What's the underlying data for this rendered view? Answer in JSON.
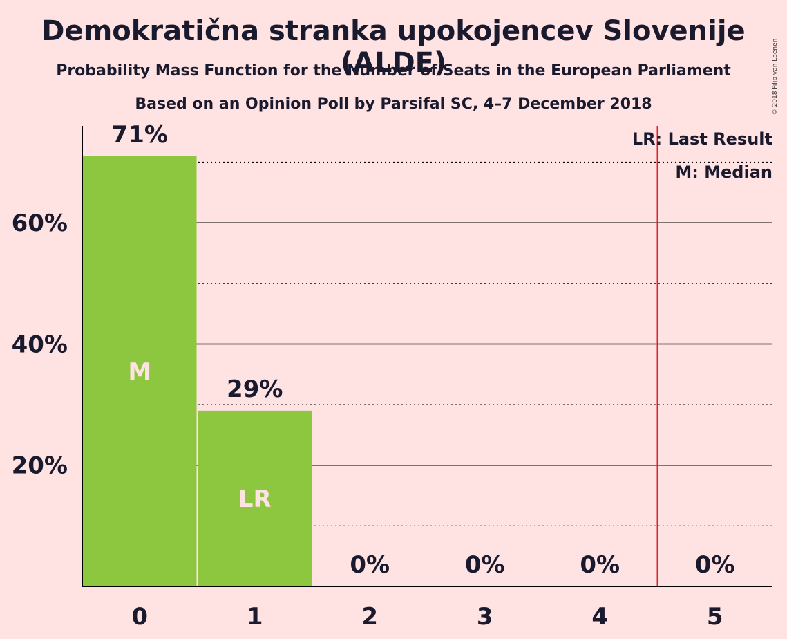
{
  "title": "Demokratična stranka upokojencev Slovenije (ALDE)",
  "subtitle": "Probability Mass Function for the Number of Seats in the European Parliament",
  "subtitle2": "Based on an Opinion Poll by Parsifal SC, 4–7 December 2018",
  "copyright": "© 2018 Filip van Laenen",
  "legend": {
    "last_result": "LR: Last Result",
    "median": "M: Median"
  },
  "colors": {
    "background": "#ffe2e2",
    "bar": "#8dc63f",
    "last_result_line": "#e0202a",
    "text": "#1a1a2e"
  },
  "chart_data": {
    "type": "bar",
    "categories": [
      "0",
      "1",
      "2",
      "3",
      "4",
      "5"
    ],
    "values": [
      71,
      29,
      0,
      0,
      0,
      0
    ],
    "value_labels": [
      "71%",
      "29%",
      "0%",
      "0%",
      "0%",
      "0%"
    ],
    "bar_markers": [
      "M",
      "LR",
      "",
      "",
      "",
      ""
    ],
    "ylim": [
      0,
      76
    ],
    "y_ticks": [
      20,
      40,
      60
    ],
    "y_tick_labels": [
      "20%",
      "40%",
      "60%"
    ],
    "minor_gridlines": [
      10,
      30,
      50,
      70
    ],
    "last_result_line_x": 4.5,
    "grid": true,
    "legend_position": "top-right"
  }
}
